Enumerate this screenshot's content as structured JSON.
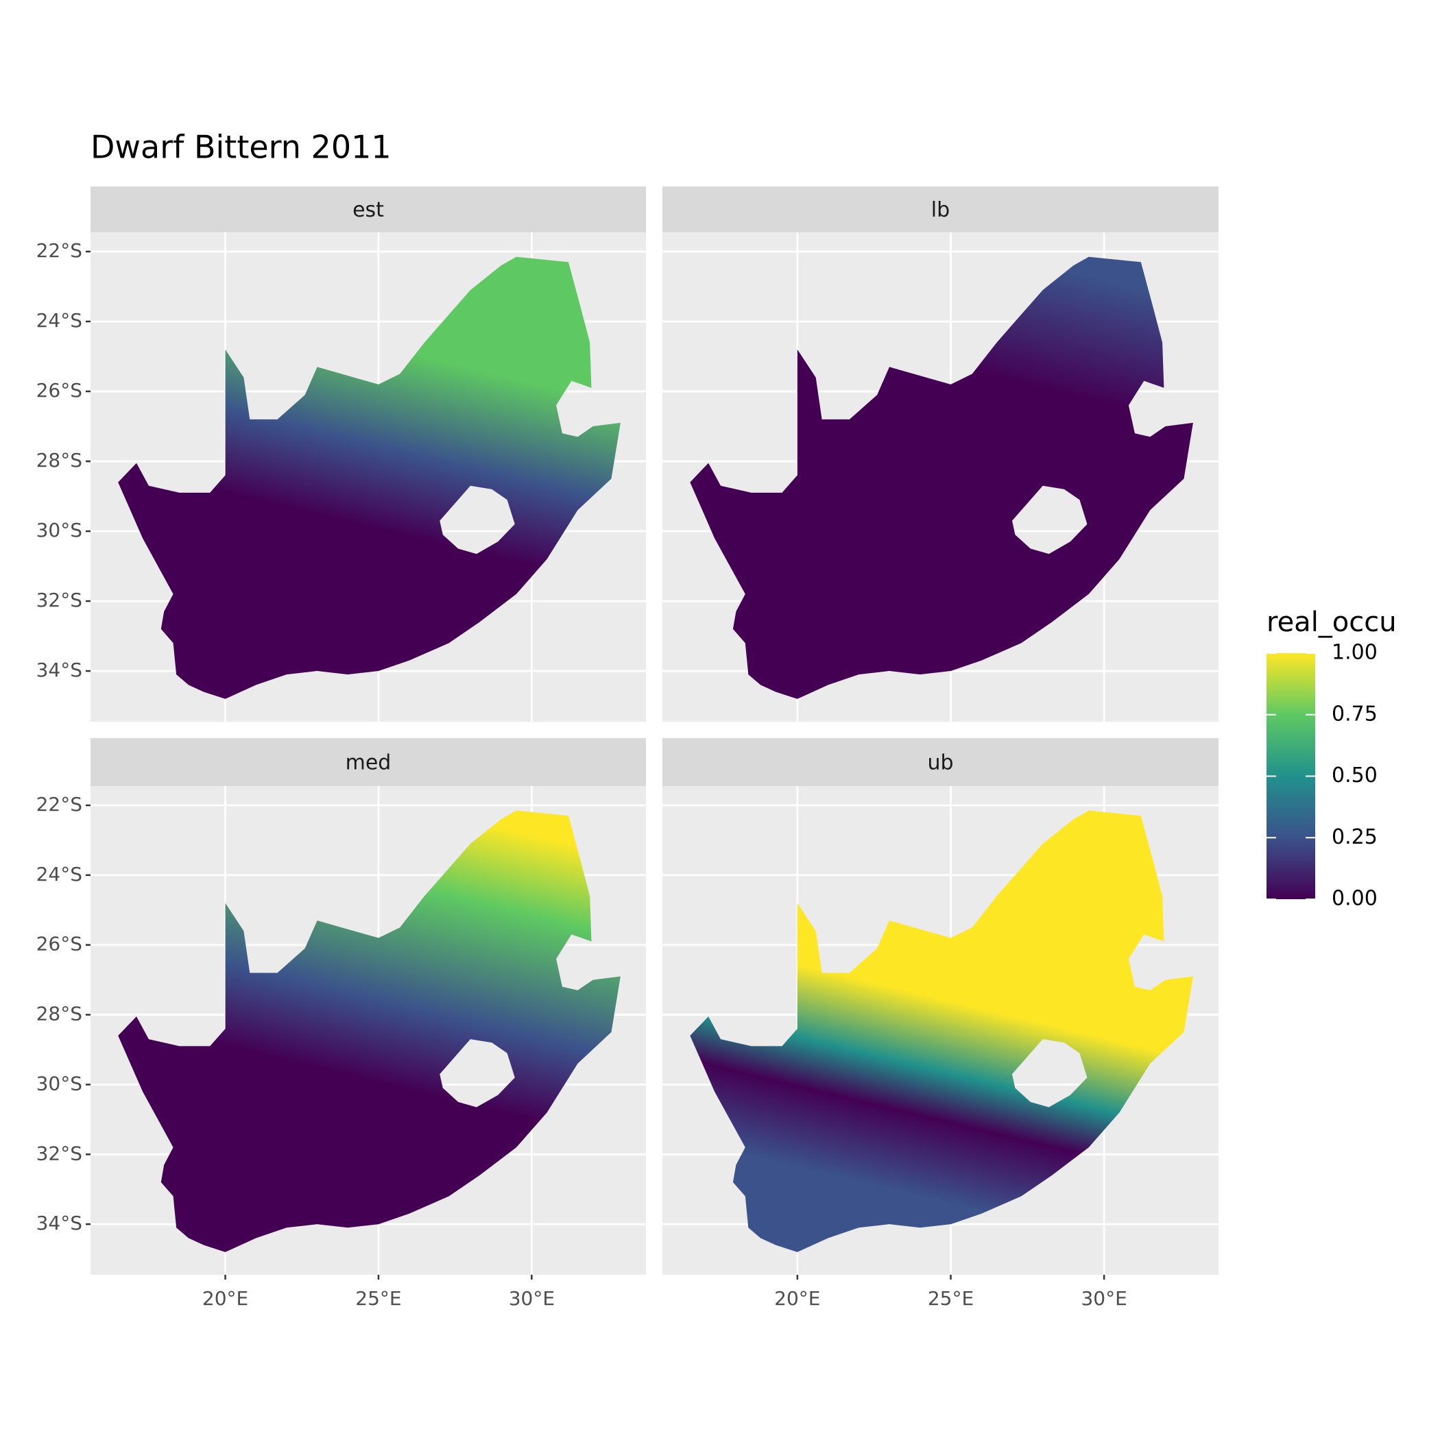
{
  "chart_data": {
    "type": "raster_map",
    "title": "Dwarf Bittern 2011",
    "facets": [
      "est",
      "lb",
      "med",
      "ub"
    ],
    "xlim": [
      15.6,
      33.73
    ],
    "ylim": [
      -35.45,
      -21.45
    ],
    "xticks": [
      {
        "value": 20,
        "label": "20°E"
      },
      {
        "value": 25,
        "label": "25°E"
      },
      {
        "value": 30,
        "label": "30°E"
      }
    ],
    "yticks": [
      {
        "value": -22,
        "label": "22°S"
      },
      {
        "value": -24,
        "label": "24°S"
      },
      {
        "value": -26,
        "label": "26°S"
      },
      {
        "value": -28,
        "label": "28°S"
      },
      {
        "value": -30,
        "label": "30°S"
      },
      {
        "value": -32,
        "label": "32°S"
      },
      {
        "value": -34,
        "label": "34°S"
      }
    ],
    "grid": true,
    "legend_title": "real_occu",
    "clim": [
      0,
      1
    ],
    "legend_ticks": [
      {
        "value": 0,
        "label": "0.00"
      },
      {
        "value": 0.25,
        "label": "0.25"
      },
      {
        "value": 0.5,
        "label": "0.50"
      },
      {
        "value": 0.75,
        "label": "0.75"
      },
      {
        "value": 1,
        "label": "1.00"
      }
    ],
    "colors": [
      "#440154",
      "#3b528b",
      "#21918c",
      "#5ec962",
      "#fde725"
    ]
  }
}
